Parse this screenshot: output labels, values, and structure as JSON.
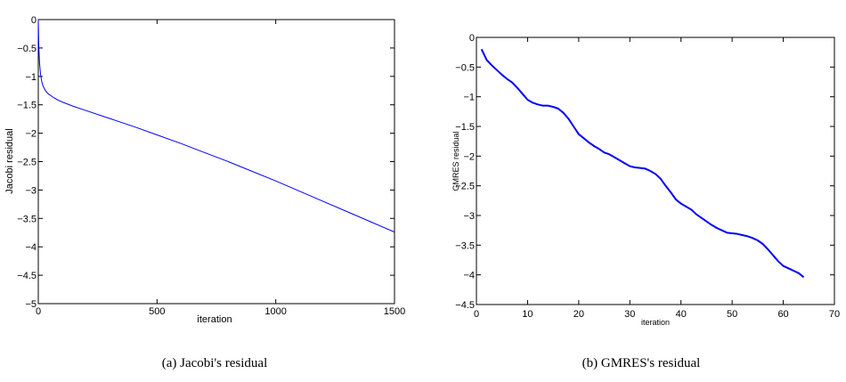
{
  "panels": [
    {
      "caption": "(a) Jacobi's residual",
      "chart_data": {
        "type": "line",
        "xlabel": "iteration",
        "ylabel": "Jacobi residual",
        "xlim": [
          0,
          1500
        ],
        "ylim": [
          -5,
          0
        ],
        "xticks": [
          0,
          500,
          1000,
          1500
        ],
        "xtick_labels": [
          "0",
          "500",
          "1000",
          "1500"
        ],
        "yticks": [
          0,
          -0.5,
          -1,
          -1.5,
          -2,
          -2.5,
          -3,
          -3.5,
          -4,
          -4.5,
          -5
        ],
        "ytick_labels": [
          "0",
          "-0.5",
          "-1",
          "-1.5",
          "-2",
          "-2.5",
          "-3",
          "-3.5",
          "-4",
          "-4.5",
          "-5"
        ],
        "grid": false,
        "color": "#0000ff",
        "series": [
          {
            "x": [
              0,
              2,
              5,
              10,
              15,
              20,
              30,
              40,
              60,
              80,
              100,
              150,
              200,
              300,
              400,
              500,
              600,
              700,
              800,
              900,
              1000,
              1100,
              1200,
              1300,
              1400,
              1500
            ],
            "values": [
              0,
              -0.45,
              -0.75,
              -0.98,
              -1.1,
              -1.17,
              -1.25,
              -1.3,
              -1.36,
              -1.41,
              -1.45,
              -1.53,
              -1.6,
              -1.74,
              -1.88,
              -2.03,
              -2.18,
              -2.34,
              -2.5,
              -2.67,
              -2.84,
              -3.02,
              -3.2,
              -3.38,
              -3.56,
              -3.74
            ]
          }
        ]
      }
    },
    {
      "caption": "(b) GMRES's residual",
      "chart_data": {
        "type": "line",
        "xlabel": "iteration",
        "ylabel": "GMRES residual",
        "xlim": [
          0,
          70
        ],
        "ylim": [
          -4.5,
          0
        ],
        "xticks": [
          0,
          10,
          20,
          30,
          40,
          50,
          60,
          70
        ],
        "xtick_labels": [
          "0",
          "10",
          "20",
          "30",
          "40",
          "50",
          "60",
          "70"
        ],
        "yticks": [
          0,
          -0.5,
          -1,
          -1.5,
          -2,
          -2.5,
          -3,
          -3.5,
          -4,
          -4.5
        ],
        "ytick_labels": [
          "0",
          "-0.5",
          "-1",
          "-1.5",
          "-2",
          "-2.5",
          "-3",
          "-3.5",
          "-4",
          "-4.5"
        ],
        "grid": false,
        "color": "#0000ff",
        "series": [
          {
            "x": [
              1,
              2,
              3,
              4,
              5,
              6,
              7,
              8,
              9,
              10,
              11,
              12,
              13,
              14,
              15,
              16,
              17,
              18,
              19,
              20,
              21,
              22,
              23,
              24,
              25,
              26,
              27,
              28,
              29,
              30,
              31,
              32,
              33,
              34,
              35,
              36,
              37,
              38,
              39,
              40,
              41,
              42,
              43,
              44,
              45,
              46,
              47,
              48,
              49,
              50,
              51,
              52,
              53,
              54,
              55,
              56,
              57,
              58,
              59,
              60,
              61,
              62,
              63,
              64
            ],
            "values": [
              -0.2,
              -0.38,
              -0.47,
              -0.55,
              -0.63,
              -0.7,
              -0.76,
              -0.85,
              -0.95,
              -1.05,
              -1.1,
              -1.13,
              -1.15,
              -1.15,
              -1.17,
              -1.2,
              -1.27,
              -1.37,
              -1.5,
              -1.63,
              -1.7,
              -1.77,
              -1.83,
              -1.88,
              -1.94,
              -1.97,
              -2.02,
              -2.07,
              -2.12,
              -2.17,
              -2.19,
              -2.2,
              -2.21,
              -2.25,
              -2.3,
              -2.38,
              -2.5,
              -2.61,
              -2.73,
              -2.8,
              -2.85,
              -2.9,
              -2.98,
              -3.04,
              -3.1,
              -3.16,
              -3.21,
              -3.25,
              -3.29,
              -3.3,
              -3.31,
              -3.33,
              -3.35,
              -3.38,
              -3.42,
              -3.48,
              -3.57,
              -3.67,
              -3.77,
              -3.85,
              -3.89,
              -3.93,
              -3.97,
              -4.04
            ]
          }
        ]
      }
    }
  ]
}
